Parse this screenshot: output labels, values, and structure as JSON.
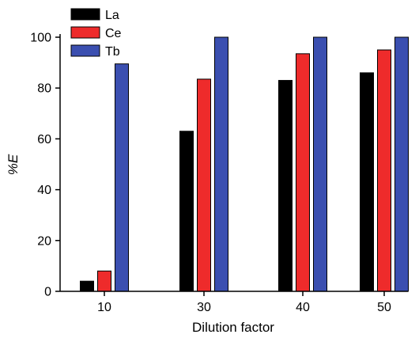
{
  "chart_data": {
    "type": "bar",
    "categories": [
      "10",
      "30",
      "40",
      "50"
    ],
    "series": [
      {
        "name": "La",
        "color": "#000000",
        "values": [
          4,
          63,
          83,
          86
        ]
      },
      {
        "name": "Ce",
        "color": "#ee2b2b",
        "values": [
          8,
          83.5,
          93.5,
          95
        ]
      },
      {
        "name": "Tb",
        "color": "#3b4fb0",
        "values": [
          89.5,
          100,
          100,
          100
        ]
      }
    ],
    "xlabel": "Dilution factor",
    "ylabel": "%E",
    "ylim": [
      0,
      100
    ],
    "yticks": [
      "0",
      "20",
      "40",
      "60",
      "80",
      "100"
    ],
    "grid": false,
    "legend_position": "top-left"
  }
}
